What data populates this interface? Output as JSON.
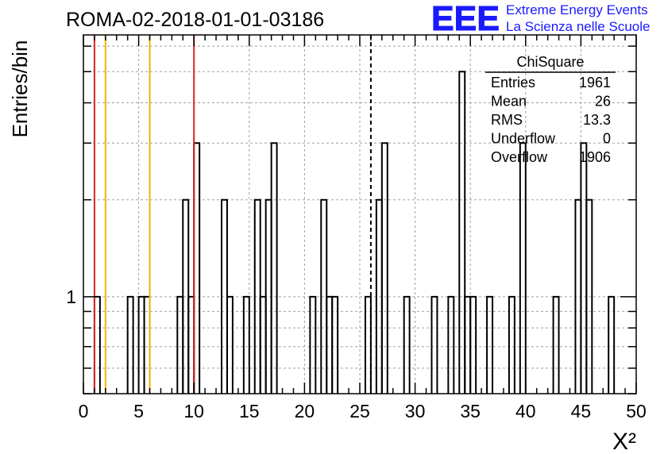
{
  "chart_data": {
    "type": "histogram",
    "title": "ROMA-02-2018-01-01-03186",
    "xlabel": "X²",
    "ylabel": "Entries/bin",
    "xlim": [
      0,
      50
    ],
    "ylim_log": [
      0.5,
      6.5
    ],
    "log_y": true,
    "grid": true,
    "bin_width": 0.5,
    "x_ticks": [
      0,
      5,
      10,
      15,
      20,
      25,
      30,
      35,
      40,
      45,
      50
    ],
    "y_tick_labels": [
      {
        "value": 1,
        "label": "1"
      }
    ],
    "bins": [
      {
        "x": 1.0,
        "count": 1
      },
      {
        "x": 4.0,
        "count": 1
      },
      {
        "x": 5.0,
        "count": 1
      },
      {
        "x": 5.5,
        "count": 1
      },
      {
        "x": 8.5,
        "count": 1
      },
      {
        "x": 9.0,
        "count": 2
      },
      {
        "x": 9.5,
        "count": 1
      },
      {
        "x": 10.0,
        "count": 3
      },
      {
        "x": 12.5,
        "count": 2
      },
      {
        "x": 13.0,
        "count": 1
      },
      {
        "x": 14.5,
        "count": 1
      },
      {
        "x": 15.5,
        "count": 2
      },
      {
        "x": 16.0,
        "count": 1
      },
      {
        "x": 16.5,
        "count": 2
      },
      {
        "x": 17.0,
        "count": 3
      },
      {
        "x": 20.5,
        "count": 1
      },
      {
        "x": 21.5,
        "count": 2
      },
      {
        "x": 22.0,
        "count": 1
      },
      {
        "x": 22.5,
        "count": 1
      },
      {
        "x": 25.5,
        "count": 1
      },
      {
        "x": 26.5,
        "count": 2
      },
      {
        "x": 27.0,
        "count": 3
      },
      {
        "x": 29.0,
        "count": 1
      },
      {
        "x": 31.5,
        "count": 1
      },
      {
        "x": 33.0,
        "count": 1
      },
      {
        "x": 34.0,
        "count": 5
      },
      {
        "x": 34.5,
        "count": 1
      },
      {
        "x": 35.0,
        "count": 1
      },
      {
        "x": 36.5,
        "count": 1
      },
      {
        "x": 38.5,
        "count": 1
      },
      {
        "x": 39.5,
        "count": 3
      },
      {
        "x": 42.5,
        "count": 1
      },
      {
        "x": 44.5,
        "count": 2
      },
      {
        "x": 45.0,
        "count": 3
      },
      {
        "x": 45.5,
        "count": 2
      },
      {
        "x": 47.5,
        "count": 1
      }
    ],
    "vertical_lines": [
      {
        "x": 1.0,
        "color": "#dd2222",
        "style": "solid"
      },
      {
        "x": 2.0,
        "color": "#f0b400",
        "style": "solid"
      },
      {
        "x": 6.0,
        "color": "#f0b400",
        "style": "solid"
      },
      {
        "x": 10.0,
        "color": "#dd2222",
        "style": "solid"
      },
      {
        "x": 26.0,
        "color": "#000000",
        "style": "dashed"
      }
    ],
    "stats_box": {
      "title": "ChiSquare",
      "rows": [
        {
          "label": "Entries",
          "value": "1961"
        },
        {
          "label": "Mean",
          "value": "26"
        },
        {
          "label": "RMS",
          "value": "13.3"
        },
        {
          "label": "Underflow",
          "value": "0"
        },
        {
          "label": "Overflow",
          "value": "1906"
        }
      ]
    }
  },
  "logo": {
    "mark": "EEE",
    "line1": "Extreme Energy Events",
    "line2": "La Scienza nelle Scuole",
    "color": "#1a1aff"
  }
}
